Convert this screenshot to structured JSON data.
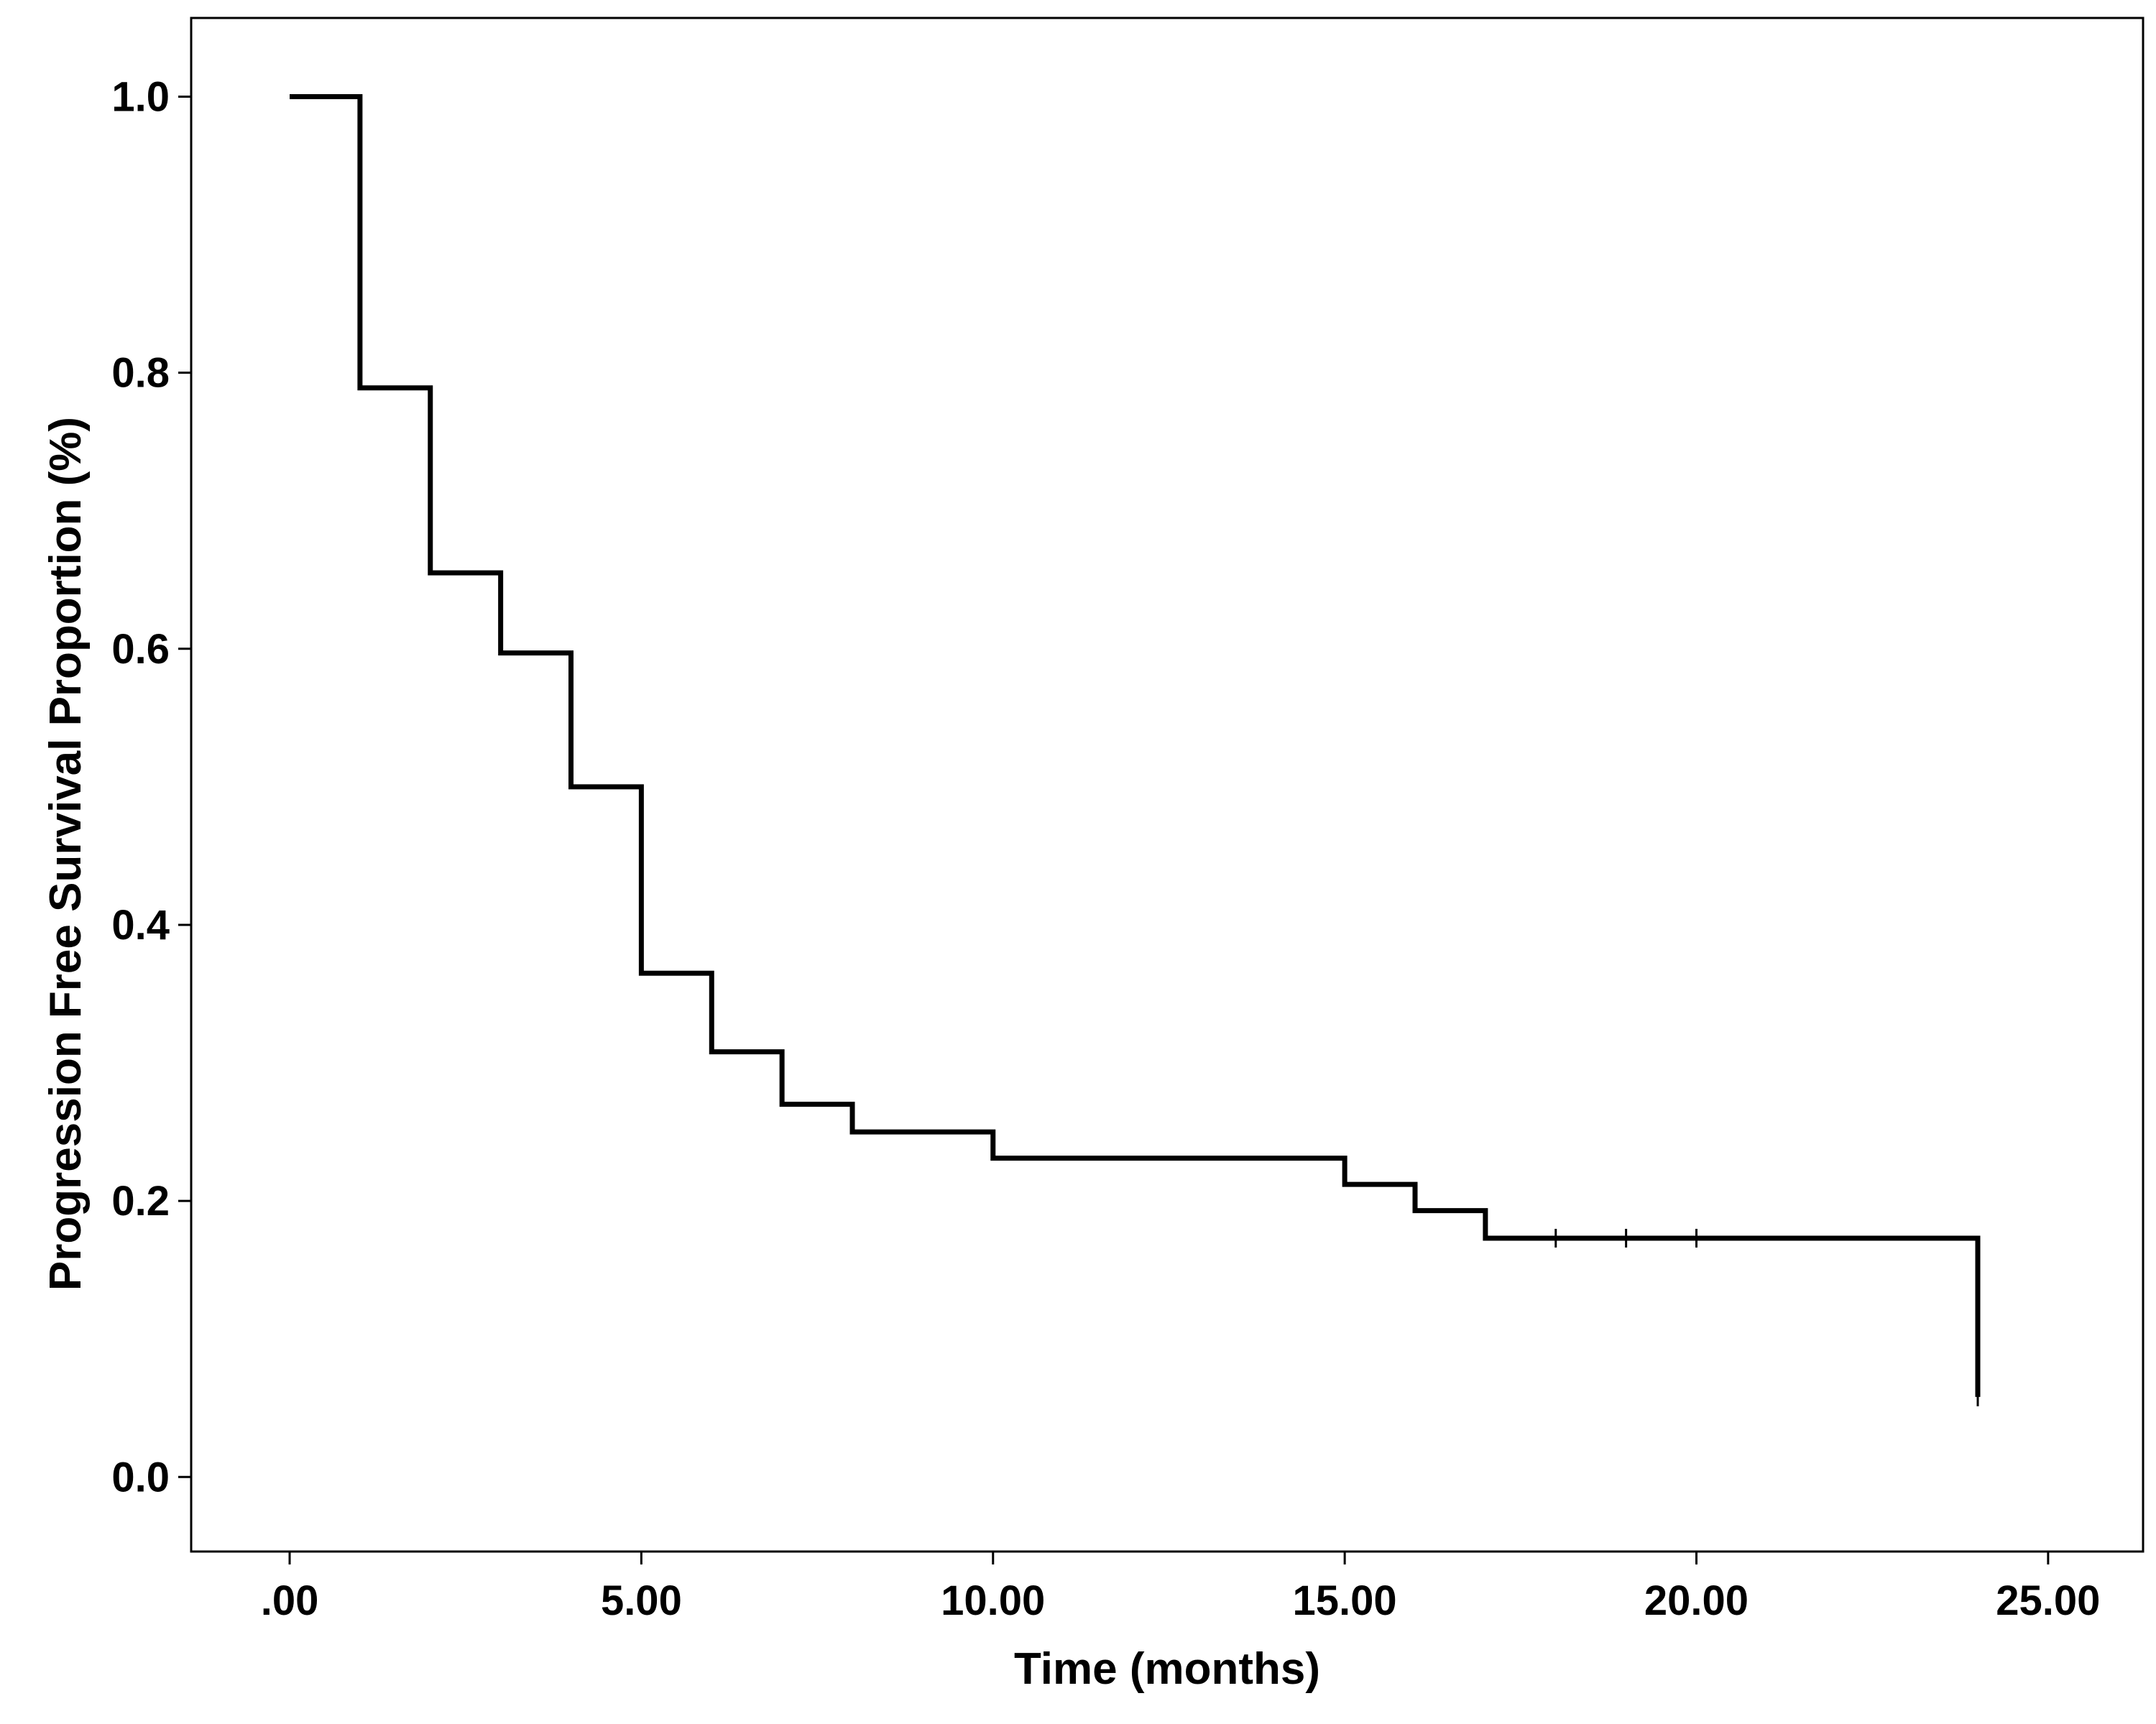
{
  "chart_data": {
    "type": "line",
    "subtype": "kaplan-meier step survival curve",
    "title": "",
    "xlabel": "Time (months)",
    "ylabel": "Progression Free Survival Proportion (%)",
    "xlim": [
      -1.4,
      26.35
    ],
    "ylim": [
      -0.054,
      1.057
    ],
    "x_ticks": [
      0,
      5,
      10,
      15,
      20,
      25
    ],
    "x_tick_labels": [
      ".00",
      "5.00",
      "10.00",
      "15.00",
      "20.00",
      "25.00"
    ],
    "y_ticks": [
      0,
      0.2,
      0.4,
      0.6,
      0.8,
      1.0
    ],
    "y_tick_labels": [
      "0.0",
      "0.2",
      "0.4",
      "0.6",
      "0.8",
      "1.0"
    ],
    "grid": false,
    "legend": "none",
    "line_color": "#000000",
    "series": [
      {
        "points": [
          {
            "x": 0,
            "y": 1.0
          },
          {
            "x": 1,
            "y": 0.789
          },
          {
            "x": 2,
            "y": 0.655
          },
          {
            "x": 3,
            "y": 0.597
          },
          {
            "x": 4,
            "y": 0.5
          },
          {
            "x": 5,
            "y": 0.365
          },
          {
            "x": 6,
            "y": 0.308
          },
          {
            "x": 7,
            "y": 0.27
          },
          {
            "x": 8,
            "y": 0.25
          },
          {
            "x": 10,
            "y": 0.231
          },
          {
            "x": 15,
            "y": 0.212
          },
          {
            "x": 16,
            "y": 0.193
          },
          {
            "x": 17,
            "y": 0.173
          },
          {
            "x": 24,
            "y": 0.058
          }
        ],
        "censored": [
          {
            "x": 18,
            "y": 0.173
          },
          {
            "x": 19,
            "y": 0.173
          },
          {
            "x": 20,
            "y": 0.173
          },
          {
            "x": 24,
            "y": 0.058
          }
        ]
      }
    ]
  }
}
